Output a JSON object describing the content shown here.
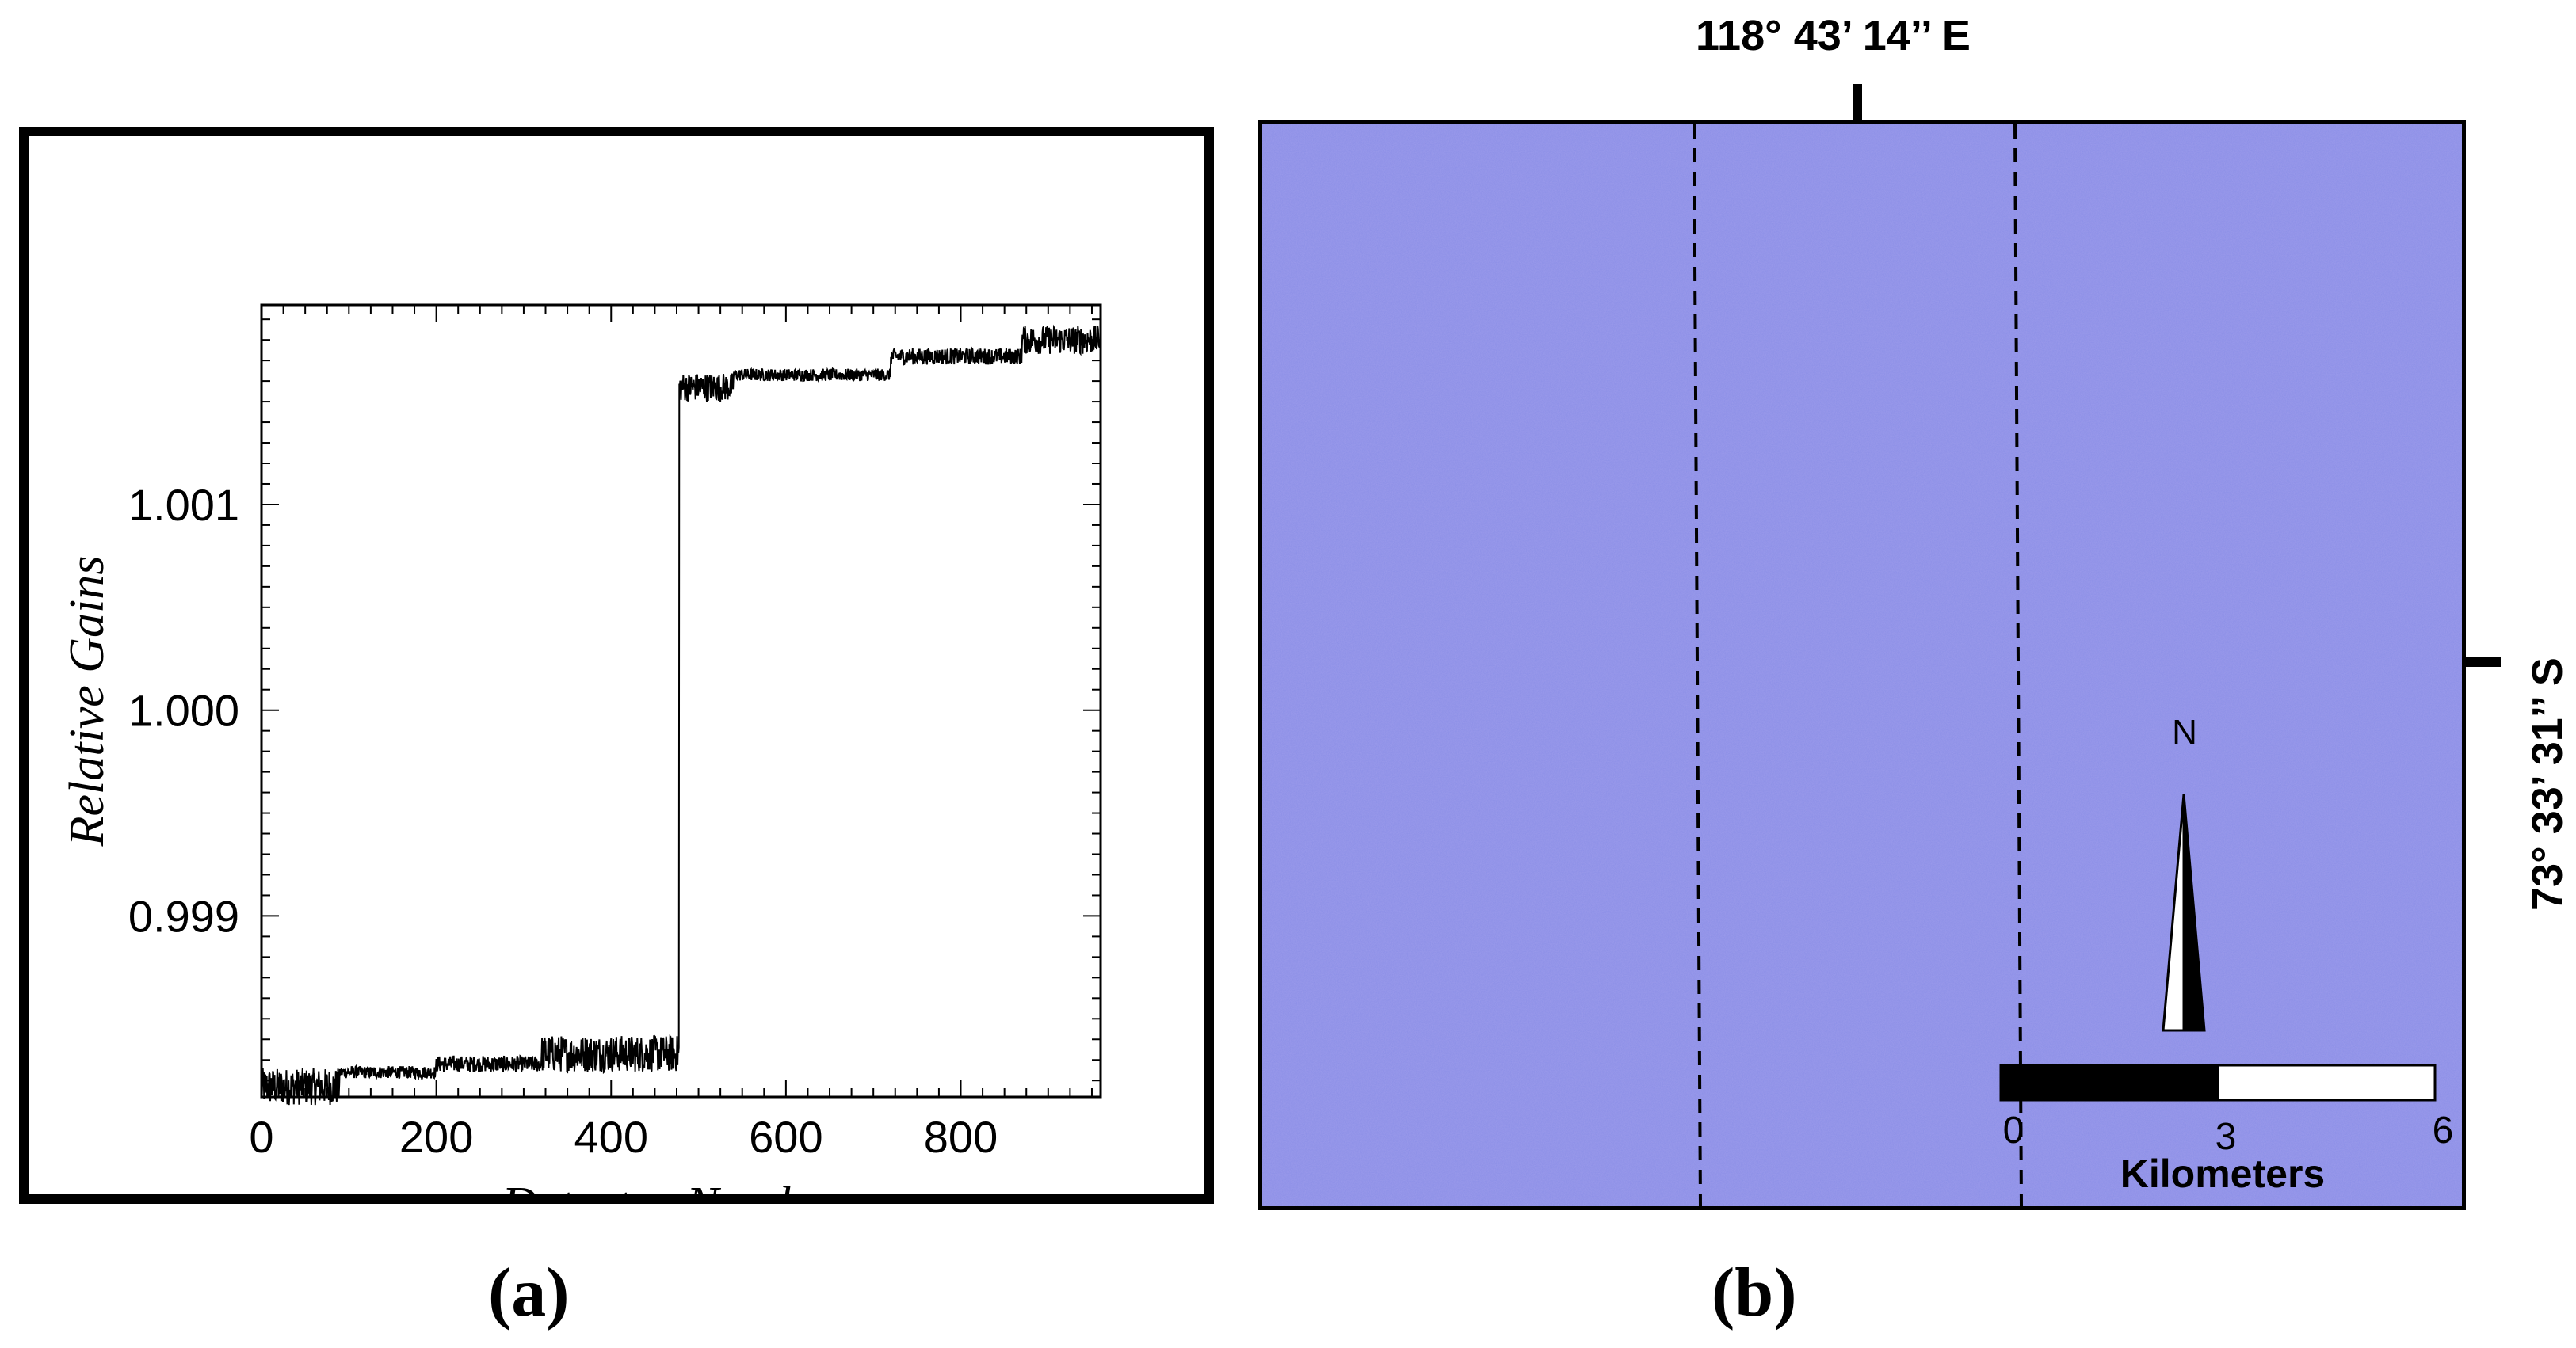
{
  "captions": {
    "a": "(a)",
    "b": "(b)"
  },
  "chart_data": {
    "type": "line",
    "title": "",
    "xlabel": "Detector Number",
    "ylabel": "Relative Gains",
    "xlim": [
      0,
      960
    ],
    "ylim": [
      0.99812,
      1.00197
    ],
    "xticks": [
      0,
      200,
      400,
      600,
      800
    ],
    "xtick_labels": [
      "0",
      "200",
      "400",
      "600",
      "800"
    ],
    "yticks": [
      0.999,
      1.0,
      1.001
    ],
    "ytick_labels": [
      "0.999",
      "1.000",
      "1.001"
    ],
    "grid": false,
    "series": [
      {
        "name": "",
        "segments": [
          {
            "x_start": 0,
            "x_end": 90,
            "level": 0.99817,
            "noise": 9e-05
          },
          {
            "x_start": 90,
            "x_end": 200,
            "level": 0.99824,
            "noise": 3e-05
          },
          {
            "x_start": 200,
            "x_end": 320,
            "level": 0.99828,
            "noise": 4e-05
          },
          {
            "x_start": 320,
            "x_end": 478,
            "level": 0.99833,
            "noise": 9e-05
          },
          {
            "x_start": 478,
            "x_end": 540,
            "level": 1.00157,
            "noise": 7e-05
          },
          {
            "x_start": 540,
            "x_end": 720,
            "level": 1.00163,
            "noise": 3e-05
          },
          {
            "x_start": 720,
            "x_end": 870,
            "level": 1.00172,
            "noise": 4e-05
          },
          {
            "x_start": 870,
            "x_end": 960,
            "level": 1.0018,
            "noise": 7e-05
          }
        ]
      }
    ]
  },
  "map": {
    "top_coordinate": "118° 43’ 14’’ E",
    "right_coordinate": "73° 33’ 31’’ S",
    "north_label": "N",
    "scale_bar": {
      "ticks": [
        "0",
        "3",
        "6"
      ],
      "unit": "Kilometers"
    },
    "colors": {
      "background": "#8a8ee6",
      "bar_dark": "#000000",
      "bar_light": "#ffffff"
    }
  }
}
